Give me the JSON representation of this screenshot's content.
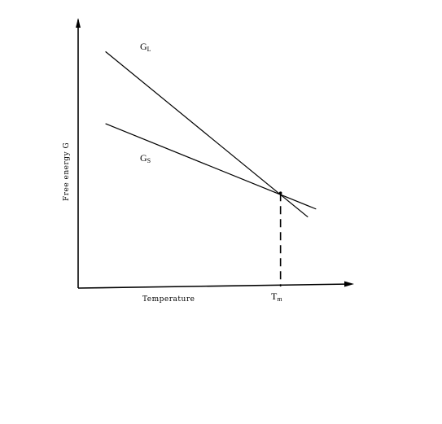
{
  "chart_data": {
    "type": "line",
    "xlabel": "Temperature",
    "ylabel": "Free energy G",
    "xlim": [
      0,
      10
    ],
    "ylim": [
      0,
      10
    ],
    "grid": false,
    "legend": "none",
    "series": [
      {
        "name": "G_L",
        "label_main": "G",
        "label_sub": "L",
        "x": [
          1,
          8.4
        ],
        "y": [
          8.8,
          2.6
        ]
      },
      {
        "name": "G_S",
        "label_main": "G",
        "label_sub": "S",
        "x": [
          1,
          8.7
        ],
        "y": [
          6.1,
          2.9
        ]
      }
    ],
    "annotation": {
      "label_main": "T",
      "label_sub": "m",
      "x": 7.4,
      "y": 3.5
    },
    "colors": {
      "line": "#000000",
      "axis": "#000000"
    }
  }
}
